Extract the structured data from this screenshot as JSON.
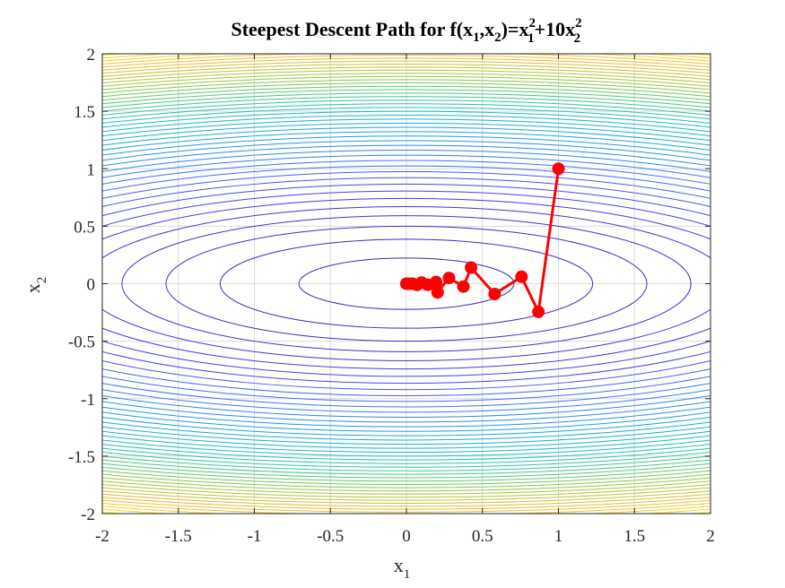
{
  "chart_data": {
    "type": "line",
    "title_parts": {
      "prefix": "Steepest Descent Path for f(x",
      "s1": "1",
      "mid1": ",x",
      "s2": "2",
      "mid2": ")=x",
      "sup1": "2",
      "sub1": "1",
      "mid3": "+10x",
      "sup2": "2",
      "sub2": "2"
    },
    "xlabel": {
      "base": "x",
      "sub": "1"
    },
    "ylabel": {
      "base": "x",
      "sub": "2"
    },
    "xlim": [
      -2,
      2
    ],
    "ylim": [
      -2,
      2
    ],
    "xticks": [
      -2,
      -1.5,
      -1,
      -0.5,
      0,
      0.5,
      1,
      1.5,
      2
    ],
    "yticks": [
      -2,
      -1.5,
      -1,
      -0.5,
      0,
      0.5,
      1,
      1.5,
      2
    ],
    "grid": true,
    "contour": {
      "function": "x1^2 + 10*x2^2",
      "levels": [
        0.5,
        1.5,
        2.5,
        3.5,
        4.5,
        5.5,
        6.5,
        7.5,
        8.5,
        9.5,
        10.5,
        11.5,
        12.5,
        13.5,
        14.5,
        15.5,
        16.5,
        17.5,
        18.5,
        19.5,
        20.5,
        21.5,
        22.5,
        23.5,
        24.5,
        25.5,
        26.5,
        27.5,
        28.5,
        29.5,
        30.5,
        31.5,
        32.5,
        33.5,
        34.5,
        35.5,
        36.5,
        37.5,
        38.5,
        39.5,
        40.5,
        41.5,
        42.5,
        43.5
      ],
      "colormap": [
        "#3e26a8",
        "#4836e9",
        "#3a71fd",
        "#1f9ce3",
        "#17bbc6",
        "#45c887",
        "#9fc83d",
        "#e5bb3b",
        "#f9e020"
      ],
      "color_range": [
        0,
        44
      ]
    },
    "series": [
      {
        "color": "#ff0000",
        "marker": "circle",
        "x": [
          1.0,
          0.868,
          0.757,
          0.58,
          0.425,
          0.375,
          0.28,
          0.205,
          0.195,
          0.14,
          0.1,
          0.07,
          0.04,
          0.015,
          0.0
        ],
        "y": [
          1.0,
          -0.245,
          0.06,
          -0.09,
          0.14,
          -0.025,
          0.05,
          -0.075,
          0.015,
          -0.01,
          0.01,
          -0.01,
          0.0,
          0.0,
          0.0
        ]
      }
    ]
  }
}
